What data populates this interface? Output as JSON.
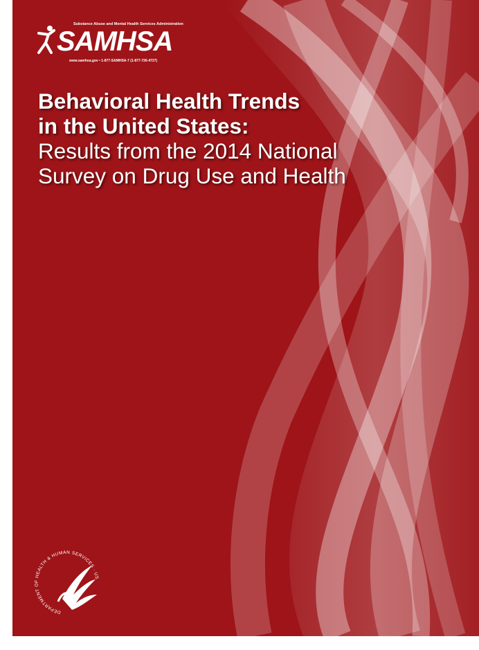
{
  "logo": {
    "tagline": "Substance Abuse and Mental Health Services Administration",
    "name": "SAMHSA",
    "contact": "www.samhsa.gov • 1-877-SAMHSA-7 (1-877-726-4727)"
  },
  "title_lines": [
    "Behavioral Health Trends",
    "in the United States:"
  ],
  "subtitle_lines": [
    "Results from the 2014 National",
    "Survey on Drug Use and Health"
  ],
  "seal": {
    "text": "DEPARTMENT OF HEALTH & HUMAN SERVICES · USA"
  }
}
